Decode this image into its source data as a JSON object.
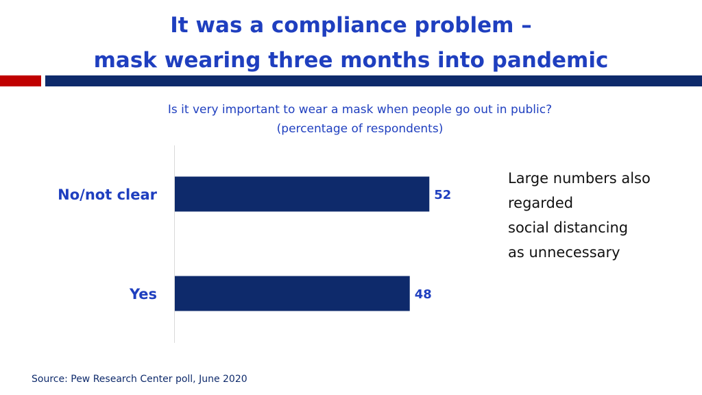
{
  "slide": {
    "title_lines": [
      "It was a compliance problem –",
      "mask wearing three months into pandemic"
    ],
    "side_note_lines": [
      "Large numbers also",
      "regarded",
      "social distancing",
      "as unnecessary"
    ],
    "source": "Source: Pew Research Center poll, June 2020"
  },
  "colors": {
    "title": "#1f3fbf",
    "bar": "#0e2a6b",
    "accent_red": "#c00000",
    "accent_blue": "#0e2a6b"
  },
  "chart_data": {
    "type": "bar",
    "orientation": "horizontal",
    "subtitle_lines": [
      "Is it very important to wear a mask when people go out in public?",
      "(percentage of respondents)"
    ],
    "categories": [
      "No/not clear",
      "Yes"
    ],
    "values": [
      52,
      48
    ],
    "xlim": [
      0,
      100
    ],
    "grid": false,
    "legend": "none"
  }
}
